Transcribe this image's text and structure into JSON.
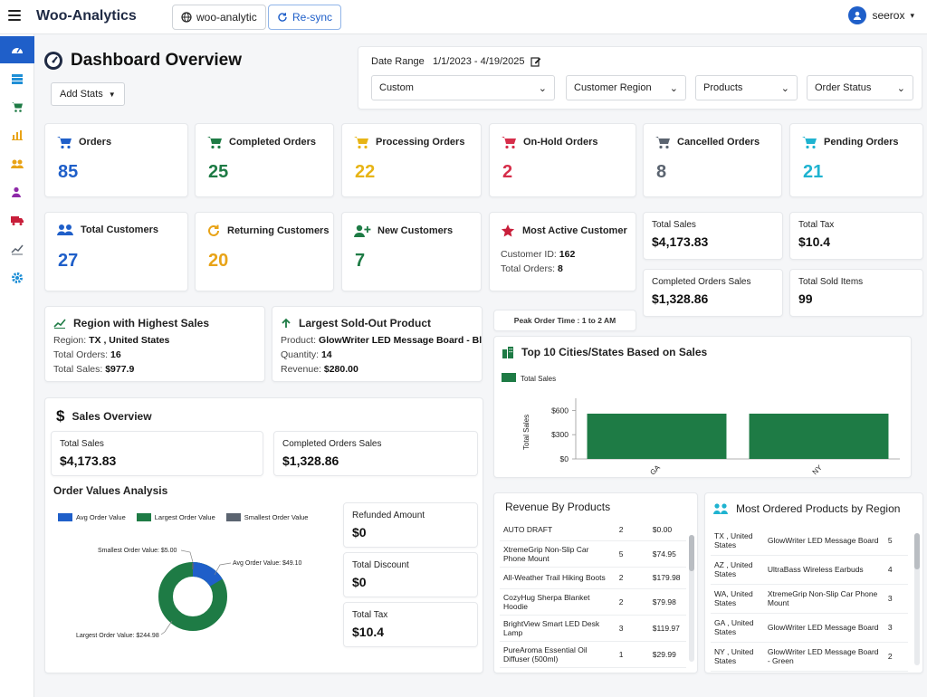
{
  "app": {
    "brand": "Woo-Analytics",
    "store_button": "woo-analytic",
    "resync_button": "Re-sync",
    "user": "seerox"
  },
  "header": {
    "title": "Dashboard Overview",
    "add_stats": "Add Stats"
  },
  "filters": {
    "date_range_label": "Date Range",
    "date_range_value": "1/1/2023 - 4/19/2025",
    "custom": "Custom",
    "region": "Customer Region",
    "products": "Products",
    "status": "Order Status"
  },
  "order_stats": [
    {
      "label": "Orders",
      "value": "85",
      "color": "#1f5fc9"
    },
    {
      "label": "Completed Orders",
      "value": "25",
      "color": "#1e7b45"
    },
    {
      "label": "Processing Orders",
      "value": "22",
      "color": "#e7b416"
    },
    {
      "label": "On-Hold Orders",
      "value": "2",
      "color": "#d62e4a"
    },
    {
      "label": "Cancelled Orders",
      "value": "8",
      "color": "#5b6470"
    },
    {
      "label": "Pending Orders",
      "value": "21",
      "color": "#1fb3d0"
    }
  ],
  "customer_stats": [
    {
      "label": "Total Customers",
      "value": "27",
      "color": "#1f5fc9"
    },
    {
      "label": "Returning Customers",
      "value": "20",
      "color": "#e8a317"
    },
    {
      "label": "New Customers",
      "value": "7",
      "color": "#1e7b45"
    }
  ],
  "most_active": {
    "title": "Most Active Customer",
    "id_label": "Customer ID:",
    "id_value": "162",
    "orders_label": "Total Orders:",
    "orders_value": "8"
  },
  "sales_mini": [
    {
      "label": "Total Sales",
      "value": "$4,173.83"
    },
    {
      "label": "Total Tax",
      "value": "$10.4"
    },
    {
      "label": "Completed Orders Sales",
      "value": "$1,328.86"
    },
    {
      "label": "Total Sold Items",
      "value": "99"
    }
  ],
  "peak_order": "Peak Order Time : 1 to 2 AM",
  "region_highest": {
    "title": "Region with Highest Sales",
    "region_label": "Region:",
    "region_value": "TX , United States",
    "orders_label": "Total Orders:",
    "orders_value": "16",
    "sales_label": "Total Sales:",
    "sales_value": "$977.9"
  },
  "largest_sold_out": {
    "title": "Largest Sold-Out Product",
    "product_label": "Product:",
    "product_value": "GlowWriter LED Message Board - Bla...",
    "qty_label": "Quantity:",
    "qty_value": "14",
    "rev_label": "Revenue:",
    "rev_value": "$280.00"
  },
  "sales_overview": {
    "title": "Sales Overview",
    "total_sales_label": "Total Sales",
    "total_sales_value": "$4,173.83",
    "completed_label": "Completed Orders Sales",
    "completed_value": "$1,328.86"
  },
  "order_values": {
    "title": "Order Values Analysis",
    "legend": [
      {
        "label": "Avg Order Value",
        "color": "#1f5fc9"
      },
      {
        "label": "Largest Order Value",
        "color": "#1e7b45"
      },
      {
        "label": "Smallest Order Value",
        "color": "#5b6470"
      }
    ],
    "callouts": {
      "smallest": "Smallest Order Value: $5.00",
      "avg": "Avg Order Value: $49.10",
      "largest": "Largest Order Value: $244.98"
    },
    "side": [
      {
        "label": "Refunded Amount",
        "value": "$0"
      },
      {
        "label": "Total Discount",
        "value": "$0"
      },
      {
        "label": "Total Tax",
        "value": "$10.4"
      }
    ]
  },
  "top_cities": {
    "title": "Top 10 Cities/States Based on Sales"
  },
  "chart_data": {
    "type": "bar",
    "title": "Top 10 Cities/States Based on Sales",
    "legend": "Total Sales",
    "ylabel": "Total Sales",
    "categories": [
      "GA",
      "NY"
    ],
    "values": [
      560,
      560
    ],
    "ylim": [
      0,
      750
    ],
    "yticks": [
      "$600",
      "$300",
      "$0"
    ],
    "color": "#1e7b45"
  },
  "revenue_products": {
    "title": "Revenue By Products",
    "rows": [
      {
        "name": "AUTO DRAFT",
        "qty": "2",
        "rev": "$0.00"
      },
      {
        "name": "XtremeGrip Non-Slip Car Phone Mount",
        "qty": "5",
        "rev": "$74.95"
      },
      {
        "name": "All-Weather Trail Hiking Boots",
        "qty": "2",
        "rev": "$179.98"
      },
      {
        "name": "CozyHug Sherpa Blanket Hoodie",
        "qty": "2",
        "rev": "$79.98"
      },
      {
        "name": "BrightView Smart LED Desk Lamp",
        "qty": "3",
        "rev": "$119.97"
      },
      {
        "name": "PureAroma Essential Oil Diffuser (500ml)",
        "qty": "1",
        "rev": "$29.99"
      }
    ]
  },
  "most_ordered": {
    "title": "Most Ordered Products by Region",
    "rows": [
      {
        "region": "TX , United States",
        "product": "GlowWriter LED Message Board",
        "qty": "5"
      },
      {
        "region": "AZ , United States",
        "product": "UltraBass Wireless Earbuds",
        "qty": "4"
      },
      {
        "region": "WA, United States",
        "product": "XtremeGrip Non-Slip Car Phone Mount",
        "qty": "3"
      },
      {
        "region": "GA , United States",
        "product": "GlowWriter LED Message Board",
        "qty": "3"
      },
      {
        "region": "NY , United States",
        "product": "GlowWriter LED Message Board - Green",
        "qty": "2"
      }
    ]
  }
}
